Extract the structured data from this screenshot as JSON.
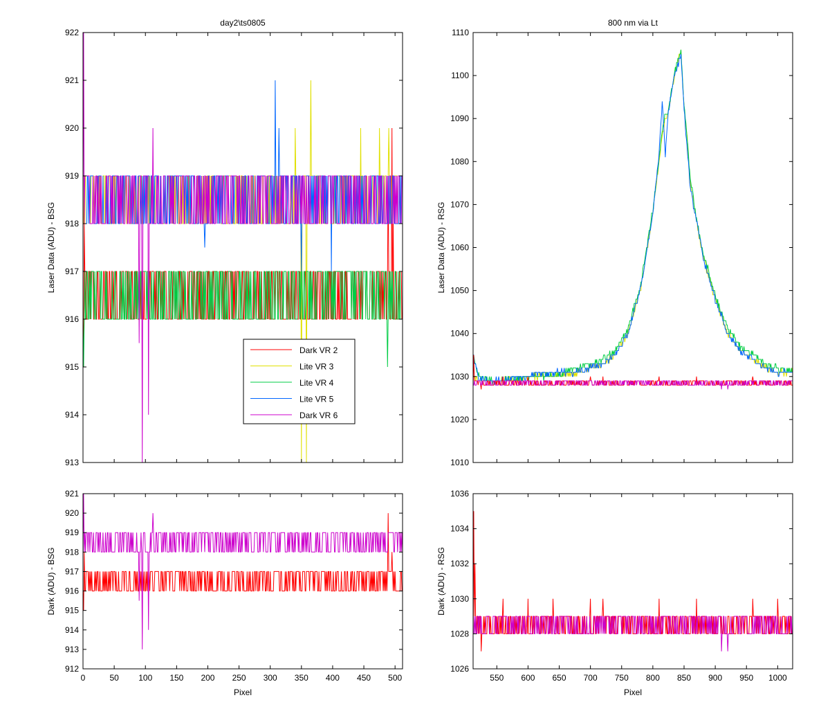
{
  "chart_data": [
    {
      "id": "top-left",
      "type": "line",
      "title": "day2\\ts0805",
      "xlabel": "",
      "ylabel": "Laser Data (ADU) - BSG",
      "xlim": [
        0,
        512
      ],
      "ylim": [
        913,
        922
      ],
      "xticks": [
        0,
        50,
        100,
        150,
        200,
        250,
        300,
        350,
        400,
        450,
        500
      ],
      "show_xtick_labels": false,
      "yticks": [
        913,
        914,
        915,
        916,
        917,
        918,
        919,
        920,
        921,
        922
      ],
      "grid": false,
      "legend": "center-right",
      "series": [
        {
          "name": "Dark VR 2",
          "color": "#ff0000",
          "x_range": [
            0,
            512
          ],
          "band": [
            916,
            917
          ],
          "spikes": [
            [
              1,
              915
            ],
            [
              2,
              918
            ],
            [
              3,
              917
            ],
            [
              489,
              919
            ],
            [
              495,
              920
            ],
            [
              497,
              918
            ],
            [
              505,
              916
            ],
            [
              508,
              917
            ]
          ]
        },
        {
          "name": "Lite VR 3",
          "color": "#e0e000",
          "x_range": [
            0,
            512
          ],
          "band": [
            918,
            919
          ],
          "spikes": [
            [
              350,
              913
            ],
            [
              358,
              913
            ],
            [
              365,
              921
            ],
            [
              340,
              920
            ],
            [
              445,
              920
            ],
            [
              475,
              920
            ],
            [
              490,
              920
            ]
          ]
        },
        {
          "name": "Lite VR 4",
          "color": "#00cc44",
          "x_range": [
            0,
            512
          ],
          "band": [
            916,
            917
          ],
          "spikes": [
            [
              1,
              915
            ],
            [
              488,
              915
            ]
          ]
        },
        {
          "name": "Lite VR 5",
          "color": "#0066ff",
          "x_range": [
            0,
            512
          ],
          "band": [
            918,
            919
          ],
          "spikes": [
            [
              308,
              921
            ],
            [
              314,
              920
            ],
            [
              195,
              917.5
            ],
            [
              350,
              917
            ],
            [
              398,
              917
            ]
          ]
        },
        {
          "name": "Dark VR 6",
          "color": "#cc00cc",
          "x_range": [
            0,
            512
          ],
          "band": [
            918,
            919
          ],
          "spikes": [
            [
              1,
              922
            ],
            [
              95,
              913
            ],
            [
              105,
              914
            ],
            [
              112,
              920
            ],
            [
              90,
              915.5
            ]
          ]
        }
      ]
    },
    {
      "id": "top-right",
      "type": "line",
      "title": "800 nm via Lt",
      "xlabel": "",
      "ylabel": "Laser Data (ADU) - RSG",
      "xlim": [
        512,
        1024
      ],
      "ylim": [
        1010,
        1110
      ],
      "xticks": [
        550,
        600,
        650,
        700,
        750,
        800,
        850,
        900,
        950,
        1000
      ],
      "show_xtick_labels": false,
      "yticks": [
        1010,
        1020,
        1030,
        1040,
        1050,
        1060,
        1070,
        1080,
        1090,
        1100,
        1110
      ],
      "grid": false,
      "series": [
        {
          "name": "Lite VR 3",
          "color": "#e0e000",
          "x": [
            512,
            520,
            540,
            560,
            600,
            640,
            680,
            700,
            720,
            740,
            760,
            780,
            800,
            810,
            815,
            820,
            825,
            835,
            845,
            850,
            855,
            860,
            870,
            880,
            890,
            900,
            920,
            940,
            960,
            980,
            1000,
            1024
          ],
          "y": [
            1030,
            1029,
            1029,
            1029,
            1030,
            1030,
            1031,
            1032,
            1033,
            1035,
            1040,
            1050,
            1068,
            1080,
            1086,
            1090,
            1092,
            1100,
            1106,
            1092,
            1085,
            1075,
            1066,
            1058,
            1053,
            1048,
            1040,
            1036,
            1034,
            1032,
            1031,
            1031
          ]
        },
        {
          "name": "Lite VR 4",
          "color": "#00cc44",
          "x": [
            512,
            520,
            540,
            560,
            600,
            640,
            680,
            700,
            720,
            740,
            760,
            780,
            800,
            810,
            815,
            820,
            825,
            835,
            845,
            850,
            855,
            860,
            870,
            880,
            890,
            900,
            920,
            940,
            960,
            980,
            1000,
            1024
          ],
          "y": [
            1035,
            1030,
            1029,
            1029,
            1030,
            1030,
            1032,
            1033,
            1034,
            1036,
            1041,
            1051,
            1069,
            1081,
            1087,
            1091,
            1092,
            1101,
            1106,
            1093,
            1086,
            1076,
            1067,
            1059,
            1054,
            1049,
            1041,
            1037,
            1035,
            1033,
            1032,
            1031
          ]
        },
        {
          "name": "Lite VR 5",
          "color": "#0066ff",
          "x": [
            512,
            520,
            540,
            560,
            600,
            640,
            680,
            700,
            720,
            740,
            760,
            780,
            800,
            810,
            815,
            820,
            825,
            835,
            845,
            850,
            855,
            860,
            870,
            880,
            890,
            900,
            920,
            940,
            960,
            980,
            1000,
            1024
          ],
          "y": [
            1035,
            1030,
            1029,
            1029,
            1030,
            1031,
            1031,
            1032,
            1033,
            1035,
            1040,
            1050,
            1068,
            1082,
            1094,
            1082,
            1092,
            1100,
            1105,
            1092,
            1083,
            1074,
            1066,
            1058,
            1053,
            1048,
            1040,
            1036,
            1034,
            1032,
            1031,
            1031
          ]
        },
        {
          "name": "Dark VR 2",
          "color": "#ff0000",
          "x_range": [
            512,
            1024
          ],
          "band": [
            1028,
            1029
          ],
          "spikes": [
            [
              513,
              1035
            ],
            [
              525,
              1027
            ],
            [
              560,
              1030
            ],
            [
              600,
              1030
            ],
            [
              700,
              1030
            ],
            [
              720,
              1030
            ],
            [
              810,
              1030
            ],
            [
              870,
              1030
            ],
            [
              960,
              1030
            ]
          ]
        },
        {
          "name": "Dark VR 6",
          "color": "#cc00cc",
          "x_range": [
            512,
            1024
          ],
          "band": [
            1028,
            1029
          ],
          "spikes": [
            [
              910,
              1027
            ],
            [
              920,
              1027
            ]
          ]
        }
      ]
    },
    {
      "id": "bottom-left",
      "type": "line",
      "title": "",
      "xlabel": "Pixel",
      "ylabel": "Dark (ADU) - BSG",
      "xlim": [
        0,
        512
      ],
      "ylim": [
        912,
        921
      ],
      "xticks": [
        0,
        50,
        100,
        150,
        200,
        250,
        300,
        350,
        400,
        450,
        500
      ],
      "show_xtick_labels": true,
      "yticks": [
        912,
        913,
        914,
        915,
        916,
        917,
        918,
        919,
        920,
        921
      ],
      "grid": false,
      "series": [
        {
          "name": "Dark VR 2",
          "color": "#ff0000",
          "x_range": [
            0,
            512
          ],
          "band": [
            916,
            917
          ],
          "spikes": [
            [
              1,
              915
            ],
            [
              2,
              918
            ],
            [
              489,
              920
            ],
            [
              495,
              918
            ],
            [
              505,
              916
            ]
          ]
        },
        {
          "name": "Dark VR 6",
          "color": "#cc00cc",
          "x_range": [
            0,
            512
          ],
          "band": [
            918,
            919
          ],
          "spikes": [
            [
              1,
              921
            ],
            [
              95,
              913
            ],
            [
              105,
              914
            ],
            [
              112,
              920
            ],
            [
              90,
              915.5
            ]
          ]
        }
      ]
    },
    {
      "id": "bottom-right",
      "type": "line",
      "title": "",
      "xlabel": "Pixel",
      "ylabel": "Dark (ADU) - RSG",
      "xlim": [
        512,
        1024
      ],
      "ylim": [
        1026,
        1036
      ],
      "xticks": [
        550,
        600,
        650,
        700,
        750,
        800,
        850,
        900,
        950,
        1000
      ],
      "show_xtick_labels": true,
      "yticks": [
        1026,
        1028,
        1030,
        1032,
        1034,
        1036
      ],
      "grid": false,
      "series": [
        {
          "name": "Dark VR 2",
          "color": "#ff0000",
          "x_range": [
            512,
            1024
          ],
          "band": [
            1028,
            1029
          ],
          "spikes": [
            [
              513,
              1035
            ],
            [
              515,
              1032
            ],
            [
              525,
              1027
            ],
            [
              560,
              1030
            ],
            [
              600,
              1030
            ],
            [
              640,
              1030
            ],
            [
              700,
              1030
            ],
            [
              720,
              1030
            ],
            [
              810,
              1030
            ],
            [
              870,
              1030
            ],
            [
              960,
              1030
            ],
            [
              1000,
              1030
            ]
          ]
        },
        {
          "name": "Dark VR 6",
          "color": "#cc00cc",
          "x_range": [
            512,
            1024
          ],
          "band": [
            1028,
            1029
          ],
          "spikes": [
            [
              910,
              1027
            ],
            [
              920,
              1027
            ]
          ]
        }
      ]
    }
  ]
}
